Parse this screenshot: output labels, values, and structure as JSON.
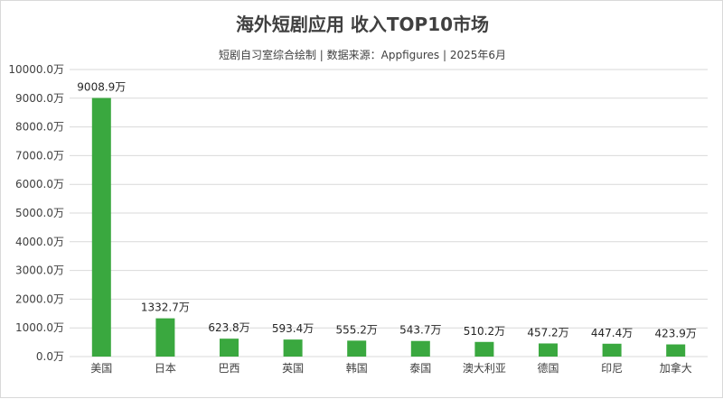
{
  "title": "海外短剧应用 收入TOP10市场",
  "subtitle": "短剧自习室综合绘制 | 数据来源：Appfigures | 2025年6月",
  "colors": {
    "bar": "#3aa83f",
    "grid": "#d9d9d9",
    "text": "#404040"
  },
  "chart_data": {
    "type": "bar",
    "title": "海外短剧应用 收入TOP10市场",
    "subtitle": "短剧自习室综合绘制 | 数据来源：Appfigures | 2025年6月",
    "categories": [
      "美国",
      "日本",
      "巴西",
      "英国",
      "韩国",
      "泰国",
      "澳大利亚",
      "德国",
      "印尼",
      "加拿大"
    ],
    "values": [
      9008.9,
      1332.7,
      623.8,
      593.4,
      555.2,
      543.7,
      510.2,
      457.2,
      447.4,
      423.9
    ],
    "data_labels": [
      "9008.9万",
      "1332.7万",
      "623.8万",
      "593.4万",
      "555.2万",
      "543.7万",
      "510.2万",
      "457.2万",
      "447.4万",
      "423.9万"
    ],
    "yticks": [
      "0.0万",
      "1000.0万",
      "2000.0万",
      "3000.0万",
      "4000.0万",
      "5000.0万",
      "6000.0万",
      "7000.0万",
      "8000.0万",
      "9000.0万",
      "10000.0万"
    ],
    "ylim": [
      0,
      10000
    ],
    "xlabel": "",
    "ylabel": "",
    "grid": true,
    "legend": "none"
  }
}
